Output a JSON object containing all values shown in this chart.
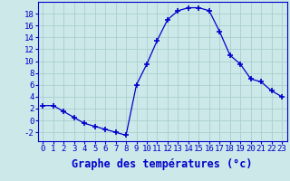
{
  "hours": [
    0,
    1,
    2,
    3,
    4,
    5,
    6,
    7,
    8,
    9,
    10,
    11,
    12,
    13,
    14,
    15,
    16,
    17,
    18,
    19,
    20,
    21,
    22,
    23
  ],
  "temps": [
    2.5,
    2.5,
    1.5,
    0.5,
    -0.5,
    -1.0,
    -1.5,
    -2.0,
    -2.5,
    6.0,
    9.5,
    13.5,
    17.0,
    18.5,
    19.0,
    19.0,
    18.5,
    15.0,
    11.0,
    9.5,
    7.0,
    6.5,
    5.0,
    4.0
  ],
  "line_color": "#0000cc",
  "marker": "+",
  "marker_size": 4,
  "marker_lw": 1.2,
  "bg_color": "#cce8e8",
  "grid_color": "#aacece",
  "xlabel": "Graphe des températures (°c)",
  "ylim": [
    -3.5,
    20
  ],
  "xlim": [
    -0.5,
    23.5
  ],
  "yticks": [
    -2,
    0,
    2,
    4,
    6,
    8,
    10,
    12,
    14,
    16,
    18
  ],
  "xtick_labels": [
    "0",
    "1",
    "2",
    "3",
    "4",
    "5",
    "6",
    "7",
    "8",
    "9",
    "10",
    "11",
    "12",
    "13",
    "14",
    "15",
    "16",
    "17",
    "18",
    "19",
    "20",
    "21",
    "22",
    "23"
  ],
  "xlabel_fontsize": 8.5,
  "tick_fontsize": 6.5,
  "xlabel_bold": true
}
